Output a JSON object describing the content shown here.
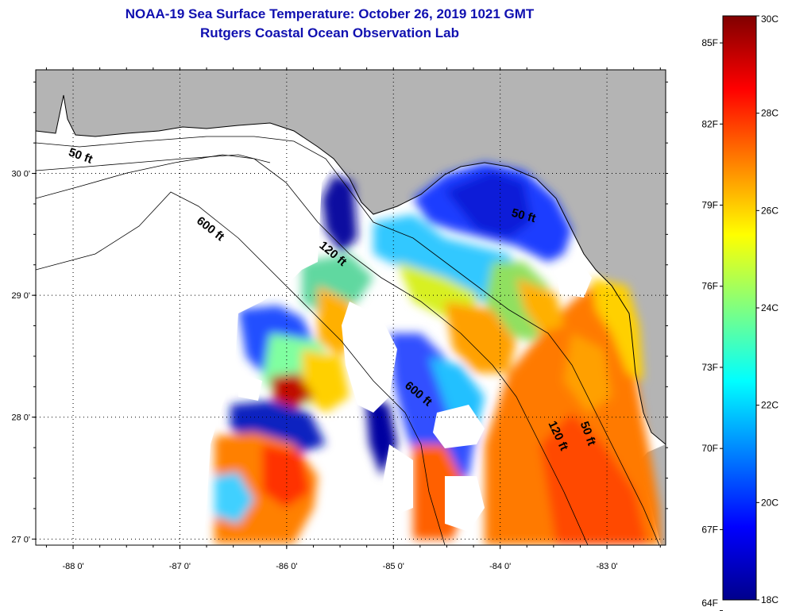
{
  "title_line1": "NOAA-19 Sea Surface Temperature:  October 26, 2019 1021 GMT",
  "title_line2": "Rutgers Coastal Ocean Observation Lab",
  "map": {
    "lon_range": [
      -88.35,
      -82.45
    ],
    "lat_range": [
      26.95,
      30.85
    ],
    "grid": true,
    "x_ticks": [
      "-88 0'",
      "-87 0'",
      "-86 0'",
      "-85 0'",
      "-84 0'",
      "-83 0'"
    ],
    "x_tick_values": [
      -88,
      -87,
      -86,
      -85,
      -84,
      -83
    ],
    "y_ticks": [
      "27 0'",
      "28 0'",
      "29 0'",
      "30 0'"
    ],
    "y_tick_values": [
      27,
      28,
      29,
      30
    ],
    "land_color": "#b4b4b4",
    "ocean_no_data_color": "#ffffff",
    "contour_labels": [
      {
        "text": "50 ft",
        "lon": -88.05,
        "lat": 30.15
      },
      {
        "text": "600 ft",
        "lon": -86.85,
        "lat": 29.6
      },
      {
        "text": "120 ft",
        "lon": -85.7,
        "lat": 29.4
      },
      {
        "text": "50 ft",
        "lon": -83.9,
        "lat": 29.65
      },
      {
        "text": "600 ft",
        "lon": -84.9,
        "lat": 28.25
      },
      {
        "text": "120 ft",
        "lon": -83.55,
        "lat": 27.95
      },
      {
        "text": "50 ft",
        "lon": -83.25,
        "lat": 27.95
      }
    ]
  },
  "colorbar": {
    "min_c": 18,
    "max_c": 30,
    "celsius_labels": [
      "30C",
      "28C",
      "26C",
      "24C",
      "22C",
      "20C",
      "18C"
    ],
    "celsius_values": [
      30,
      28,
      26,
      24,
      22,
      20,
      18
    ],
    "fahrenheit_labels": [
      "85F",
      "82F",
      "79F",
      "76F",
      "73F",
      "70F",
      "67F",
      "64F"
    ],
    "fahrenheit_values": [
      85,
      82,
      79,
      76,
      73,
      70,
      67,
      64
    ],
    "colors": [
      "#00008c",
      "#0000ff",
      "#0080ff",
      "#00ffff",
      "#80ff80",
      "#ffff00",
      "#ff8000",
      "#ff0000",
      "#800000"
    ]
  },
  "sst_regions": [
    {
      "name": "nw-offshore",
      "temp_c": 23.5
    },
    {
      "name": "big-bend-shelf",
      "temp_c": 20.5
    },
    {
      "name": "west-florida-shelf",
      "temp_c": 27.5
    },
    {
      "name": "sw-offshore",
      "temp_c": 27.0
    },
    {
      "name": "central-mid",
      "temp_c": 22.5
    }
  ]
}
